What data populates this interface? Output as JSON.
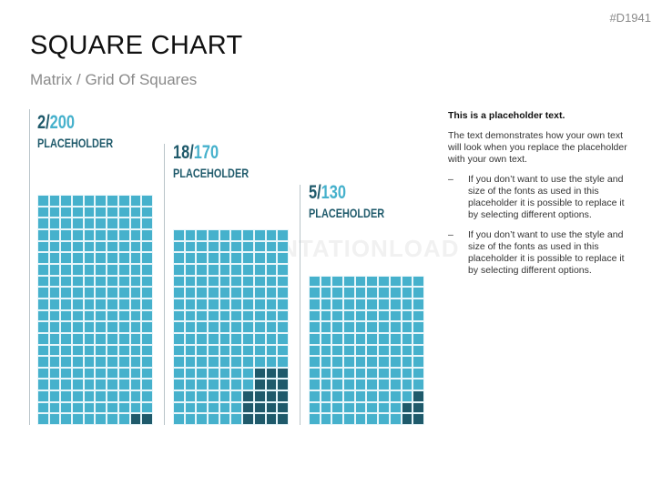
{
  "header": {
    "code": "#D1941",
    "title": "SQUARE CHART",
    "subtitle": "Matrix / Grid Of Squares"
  },
  "watermark": "PRESENTATIONLOAD",
  "chart_data": {
    "type": "table",
    "columns_per_grid": 10,
    "colors": {
      "base": "#46b1cc",
      "highlight": "#1f5a6b"
    },
    "series": [
      {
        "highlighted": "2",
        "total": "200",
        "label": "PLACEHOLDER",
        "highlight_value": 2,
        "total_value": 200,
        "highlight_cells": [
          [
            1,
            9
          ],
          [
            1,
            10
          ]
        ]
      },
      {
        "highlighted": "18",
        "total": "170",
        "label": "PLACEHOLDER",
        "highlight_value": 18,
        "total_value": 170,
        "highlight_cells": [
          [
            1,
            7
          ],
          [
            1,
            8
          ],
          [
            1,
            9
          ],
          [
            1,
            10
          ],
          [
            2,
            7
          ],
          [
            2,
            8
          ],
          [
            2,
            9
          ],
          [
            2,
            10
          ],
          [
            3,
            7
          ],
          [
            3,
            8
          ],
          [
            3,
            9
          ],
          [
            3,
            10
          ],
          [
            4,
            8
          ],
          [
            4,
            9
          ],
          [
            4,
            10
          ],
          [
            5,
            8
          ],
          [
            5,
            9
          ],
          [
            5,
            10
          ]
        ]
      },
      {
        "highlighted": "5",
        "total": "130",
        "label": "PLACEHOLDER",
        "highlight_value": 5,
        "total_value": 130,
        "highlight_cells": [
          [
            1,
            9
          ],
          [
            1,
            10
          ],
          [
            2,
            9
          ],
          [
            2,
            10
          ],
          [
            3,
            10
          ]
        ]
      }
    ]
  },
  "sidebar": {
    "heading": "This is a placeholder text.",
    "paragraph": "The text demonstrates how your own text will look when you replace the placeholder with your own text.",
    "bullets": [
      {
        "dash": "–",
        "text": "If you don’t want to use the style and size of the fonts as used in this placeholder it is possible to replace it by selecting different options."
      },
      {
        "dash": "–",
        "text": "If you don’t want to use the style and size of the fonts as used in this placeholder it is possible to replace it by selecting different options."
      }
    ]
  }
}
